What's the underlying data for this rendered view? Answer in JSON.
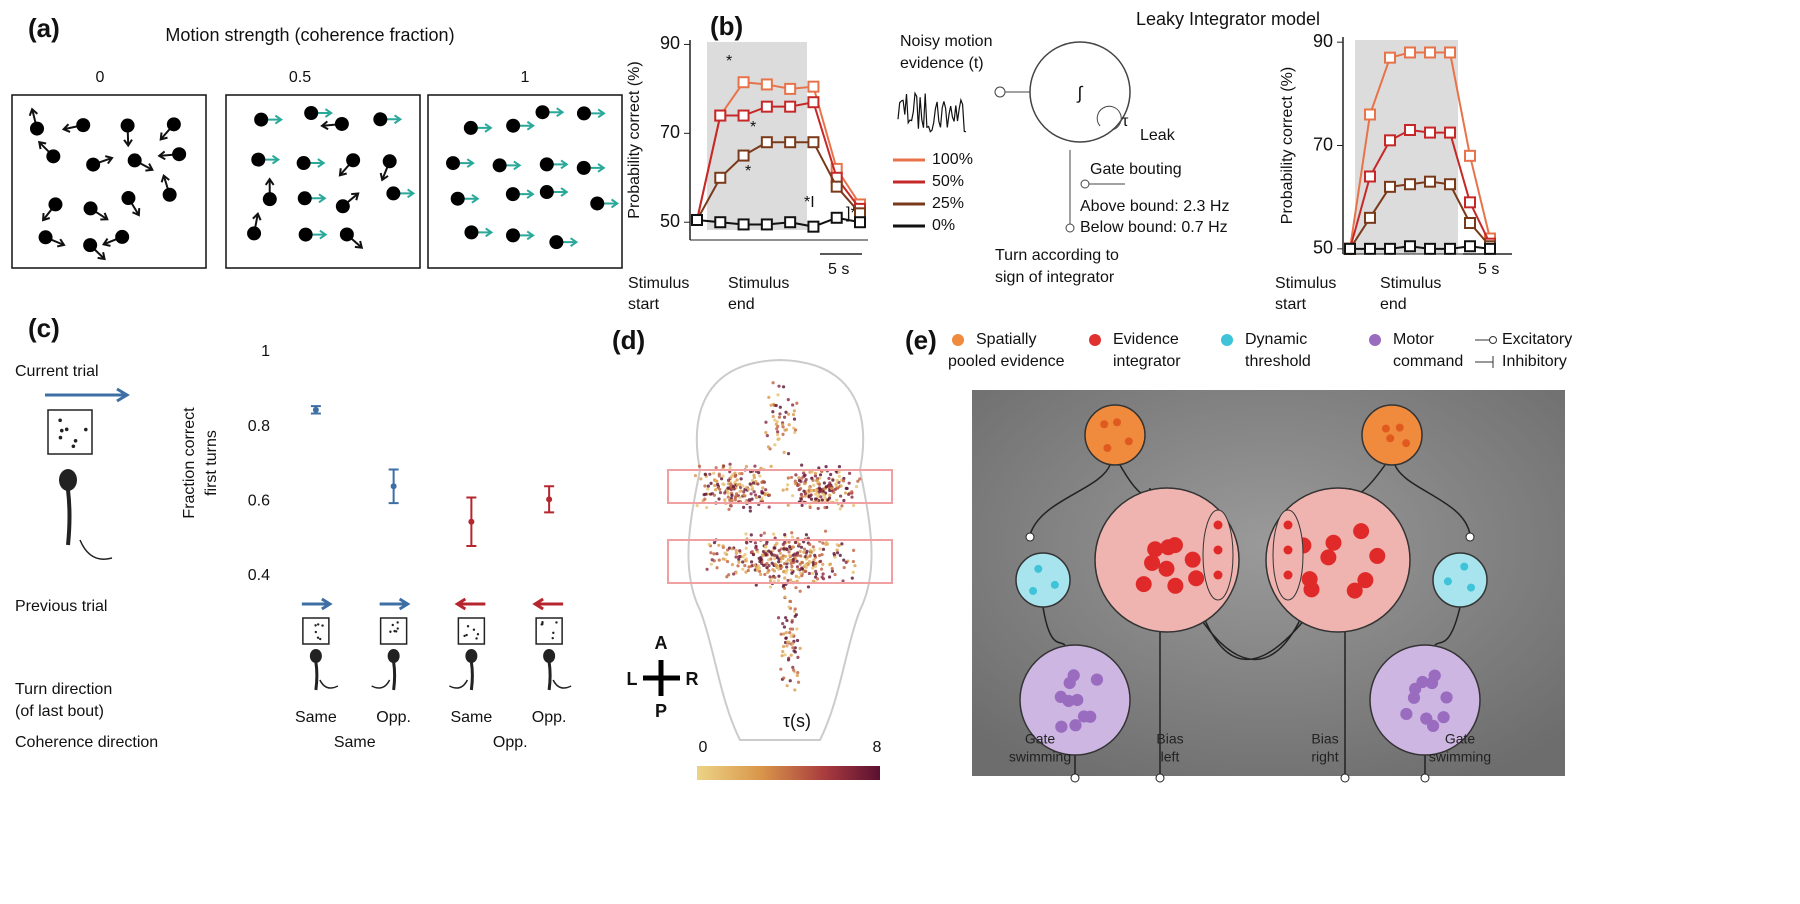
{
  "panels": {
    "a": {
      "label": "(a)",
      "title": "Motion strength (coherence fraction)",
      "coherence_labels": [
        "0",
        "0.5",
        "1"
      ]
    },
    "b": {
      "label": "(b)",
      "model_title": "Leaky Integrator model",
      "noise_label": [
        "Noisy motion",
        "evidence (t)"
      ],
      "tau": "τ",
      "leak": "Leak",
      "gate": "Gate bouting",
      "above": "Above bound: 2.3 Hz",
      "below": "Below bound: 0.7 Hz",
      "turn": [
        "Turn according to",
        "sign of integrator"
      ],
      "stim_start": [
        "Stimulus",
        "start"
      ],
      "stim_end": [
        "Stimulus",
        "end"
      ],
      "scale": "5 s",
      "stars": [
        "*",
        "*",
        "*",
        "*I",
        "]*"
      ]
    },
    "c": {
      "label": "(c)",
      "current": "Current trial",
      "previous": "Previous trial",
      "turn": [
        "Turn direction",
        "(of last bout)"
      ],
      "coherence": "Coherence direction",
      "groups": [
        {
          "name": "Same",
          "color": "#3d6fa5"
        },
        {
          "name": "Opp.",
          "color": "#b5262f"
        }
      ]
    },
    "d": {
      "label": "(d)",
      "axes": [
        "A",
        "L",
        "R",
        "P"
      ],
      "colorbar_label": "τ(s)",
      "colorbar_ticks": [
        0,
        8
      ]
    },
    "e": {
      "label": "(e)",
      "legend": [
        {
          "lines": [
            "Spatially",
            "pooled evidence"
          ],
          "color": "#f08a3c"
        },
        {
          "lines": [
            "Evidence",
            "integrator"
          ],
          "color": "#e03030"
        },
        {
          "lines": [
            "Dynamic",
            "threshold"
          ],
          "color": "#3ec3d8"
        },
        {
          "lines": [
            "Motor",
            "command"
          ],
          "color": "#9a6cc0"
        }
      ],
      "excitatory": "Excitatory",
      "inhibitory": "Inhibitory",
      "outputs": [
        [
          "Gate",
          "swimming"
        ],
        [
          "Bias",
          "left"
        ],
        [
          "Bias",
          "right"
        ],
        [
          "Gate",
          "swimming"
        ]
      ]
    }
  },
  "chart_data": [
    {
      "type": "line",
      "ylabel": "Probability correct (%)",
      "categories": [
        null,
        null,
        null,
        null,
        null,
        null,
        null,
        null
      ],
      "ylim": [
        46,
        91
      ],
      "yticks": [
        50,
        70,
        90
      ],
      "series": [
        {
          "name": "100%",
          "color": "#e8734a",
          "values": [
            50.5,
            74,
            81.5,
            81,
            80,
            80.5,
            62,
            54
          ]
        },
        {
          "name": "50%",
          "color": "#c62828",
          "values": [
            50.5,
            74,
            74,
            76,
            76,
            77,
            60,
            53
          ]
        },
        {
          "name": "25%",
          "color": "#7a3a1a",
          "values": [
            50.5,
            60,
            65,
            68,
            68,
            68,
            58,
            52
          ]
        },
        {
          "name": "0%",
          "color": "#111111",
          "values": [
            50.5,
            50,
            49.5,
            49.5,
            50,
            49,
            51,
            50
          ]
        }
      ]
    },
    {
      "type": "line",
      "ylabel": "Probability correct (%)",
      "categories": [
        null,
        null,
        null,
        null,
        null,
        null,
        null,
        null
      ],
      "ylim": [
        49,
        91
      ],
      "yticks": [
        50,
        70,
        90
      ],
      "series": [
        {
          "color": "#e8734a",
          "values": [
            50,
            76,
            87,
            88,
            88,
            88,
            68,
            52
          ]
        },
        {
          "color": "#c62828",
          "values": [
            50,
            64,
            71,
            73,
            72.5,
            72.5,
            59,
            51
          ]
        },
        {
          "color": "#7a3a1a",
          "values": [
            50,
            56,
            62,
            62.5,
            63,
            62.5,
            55,
            50.5
          ]
        },
        {
          "color": "#111111",
          "values": [
            50,
            50,
            50,
            50.5,
            50,
            50,
            50.5,
            50
          ]
        }
      ]
    },
    {
      "type": "errorbar",
      "ylabel": [
        "Fraction correct",
        "first turns"
      ],
      "categories": [
        "Same",
        "Opp.",
        "Same",
        "Opp."
      ],
      "values": [
        0.845,
        0.64,
        0.545,
        0.605
      ],
      "errors": [
        0.01,
        0.045,
        0.065,
        0.035
      ],
      "colors": [
        "#3d6fa5",
        "#3d6fa5",
        "#b5262f",
        "#b5262f"
      ],
      "ylim": [
        0.37,
        1.0
      ],
      "yticks": [
        1,
        0.8,
        0.6,
        0.4
      ]
    }
  ]
}
